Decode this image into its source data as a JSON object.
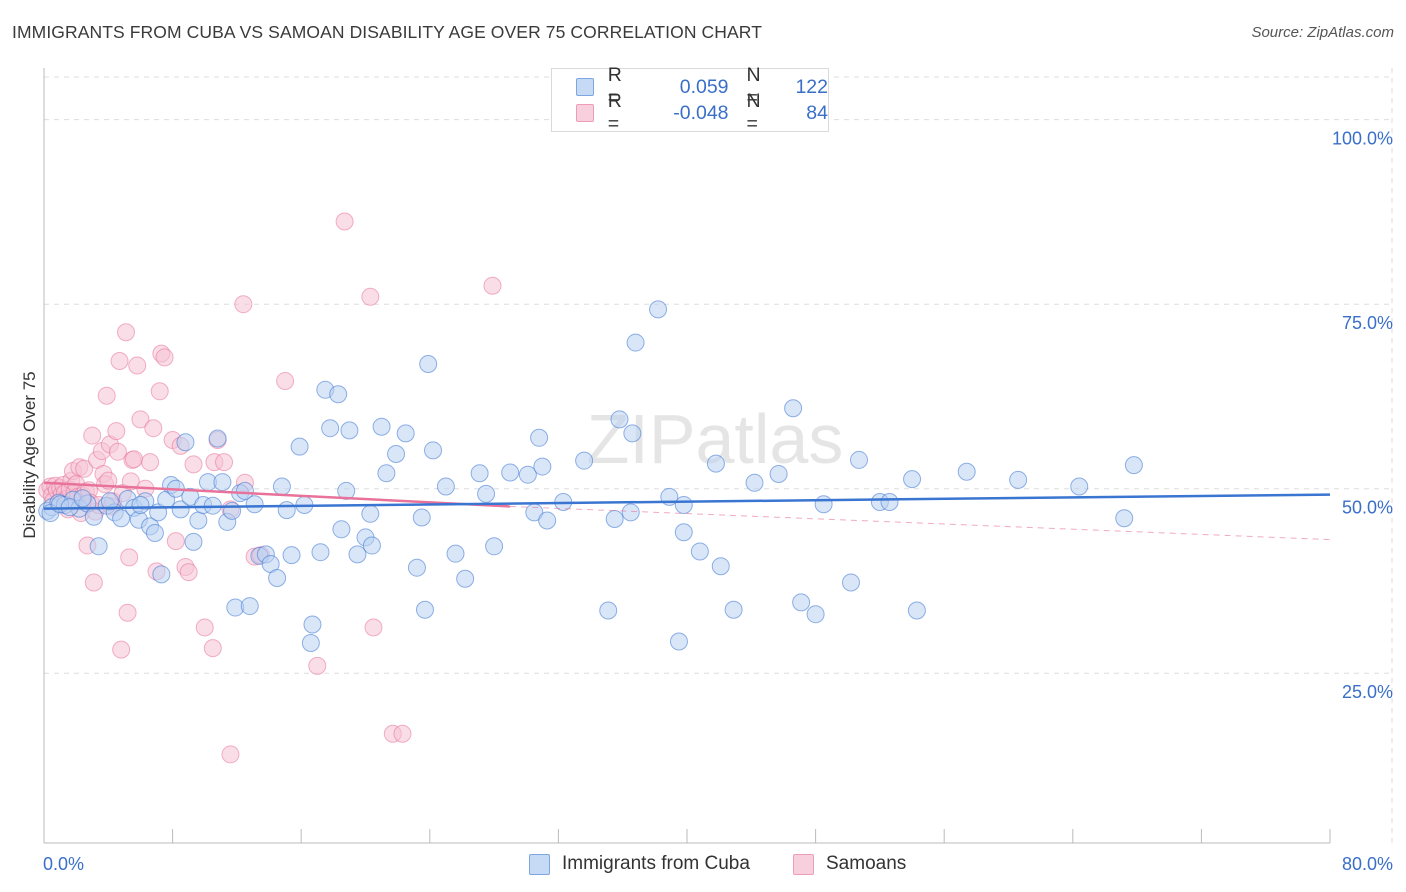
{
  "title": "IMMIGRANTS FROM CUBA VS SAMOAN DISABILITY AGE OVER 75 CORRELATION CHART",
  "source": "Source: ZipAtlas.com",
  "watermark": "ZIPatlas",
  "legend_stats": {
    "r_label": "R =",
    "n_label": "N =",
    "series_1": {
      "r": "0.059",
      "n": "122"
    },
    "series_2": {
      "r": "-0.048",
      "n": "84"
    }
  },
  "legend_bottom": {
    "series_1": "Immigrants from Cuba",
    "series_2": "Samoans"
  },
  "colors": {
    "blue": "#3a75d1",
    "blue_fill": "#b9d1f3",
    "pink": "#e8729a",
    "pink_fill": "#f6c2d3",
    "grid": "#dddddd",
    "tick_text": "#3a6fc9"
  },
  "chart_data": {
    "type": "scatter",
    "ylabel": "Disability Age Over 75",
    "x_tick_labels": [
      "0.0%",
      "80.0%"
    ],
    "y_tick_labels": [
      "25.0%",
      "50.0%",
      "75.0%",
      "100.0%"
    ],
    "xlim": [
      0,
      80
    ],
    "ylim": [
      2,
      107
    ],
    "y_ticks": [
      25,
      50,
      75,
      100
    ],
    "grid": true,
    "series": [
      {
        "name": "Immigrants from Cuba",
        "r": 0.059,
        "n": 122,
        "trend": [
          [
            0,
            47.3
          ],
          [
            80,
            49.2
          ]
        ],
        "points": [
          [
            0.2,
            47.0
          ],
          [
            0.5,
            47.5
          ],
          [
            0.9,
            48.1
          ],
          [
            1.3,
            47.8
          ],
          [
            1.8,
            48.5
          ],
          [
            2.2,
            47.3
          ],
          [
            2.7,
            48.0
          ],
          [
            3.1,
            46.2
          ],
          [
            3.4,
            42.2
          ],
          [
            3.9,
            47.7
          ],
          [
            4.4,
            46.8
          ],
          [
            4.8,
            46.0
          ],
          [
            5.2,
            48.6
          ],
          [
            5.6,
            47.4
          ],
          [
            5.9,
            45.8
          ],
          [
            6.3,
            48.3
          ],
          [
            6.6,
            44.9
          ],
          [
            6.9,
            44.0
          ],
          [
            7.1,
            46.8
          ],
          [
            7.3,
            38.4
          ],
          [
            7.6,
            48.5
          ],
          [
            7.9,
            50.5
          ],
          [
            8.2,
            50.0
          ],
          [
            8.5,
            47.2
          ],
          [
            8.8,
            56.3
          ],
          [
            9.1,
            48.9
          ],
          [
            9.3,
            42.8
          ],
          [
            9.6,
            45.7
          ],
          [
            9.9,
            47.8
          ],
          [
            10.2,
            50.9
          ],
          [
            10.5,
            47.7
          ],
          [
            10.8,
            56.8
          ],
          [
            11.1,
            50.9
          ],
          [
            11.4,
            45.5
          ],
          [
            11.7,
            47.0
          ],
          [
            11.9,
            33.9
          ],
          [
            12.2,
            49.4
          ],
          [
            12.5,
            49.7
          ],
          [
            12.8,
            34.1
          ],
          [
            13.1,
            47.9
          ],
          [
            13.4,
            40.9
          ],
          [
            13.8,
            41.1
          ],
          [
            14.1,
            39.8
          ],
          [
            14.5,
            37.9
          ],
          [
            14.8,
            50.3
          ],
          [
            15.1,
            47.1
          ],
          [
            15.4,
            41.0
          ],
          [
            15.9,
            55.7
          ],
          [
            16.2,
            47.8
          ],
          [
            16.7,
            31.6
          ],
          [
            16.6,
            29.1
          ],
          [
            17.2,
            41.4
          ],
          [
            17.5,
            63.4
          ],
          [
            17.8,
            58.2
          ],
          [
            18.3,
            62.8
          ],
          [
            18.5,
            44.5
          ],
          [
            18.8,
            49.7
          ],
          [
            19.0,
            57.9
          ],
          [
            19.5,
            41.1
          ],
          [
            20.0,
            43.4
          ],
          [
            20.3,
            46.6
          ],
          [
            20.4,
            42.3
          ],
          [
            21.0,
            58.4
          ],
          [
            21.3,
            52.1
          ],
          [
            21.9,
            54.7
          ],
          [
            22.5,
            57.5
          ],
          [
            23.2,
            39.3
          ],
          [
            23.5,
            46.1
          ],
          [
            23.7,
            33.6
          ],
          [
            23.9,
            66.9
          ],
          [
            24.2,
            55.2
          ],
          [
            25.0,
            50.3
          ],
          [
            25.6,
            41.2
          ],
          [
            26.2,
            37.8
          ],
          [
            27.1,
            52.1
          ],
          [
            27.5,
            49.3
          ],
          [
            28.0,
            42.2
          ],
          [
            29.0,
            52.2
          ],
          [
            30.1,
            51.9
          ],
          [
            30.5,
            46.8
          ],
          [
            30.8,
            56.9
          ],
          [
            31.0,
            53.0
          ],
          [
            31.3,
            45.7
          ],
          [
            32.3,
            48.2
          ],
          [
            33.6,
            53.8
          ],
          [
            35.5,
            45.9
          ],
          [
            35.8,
            59.4
          ],
          [
            35.1,
            33.5
          ],
          [
            36.5,
            46.8
          ],
          [
            36.6,
            57.5
          ],
          [
            36.8,
            69.8
          ],
          [
            38.2,
            74.3
          ],
          [
            38.9,
            48.9
          ],
          [
            39.5,
            29.3
          ],
          [
            39.8,
            47.8
          ],
          [
            39.8,
            44.1
          ],
          [
            40.8,
            41.5
          ],
          [
            41.8,
            53.4
          ],
          [
            42.1,
            39.5
          ],
          [
            42.9,
            33.6
          ],
          [
            44.2,
            50.8
          ],
          [
            45.7,
            52.0
          ],
          [
            46.6,
            60.9
          ],
          [
            47.1,
            34.6
          ],
          [
            48.0,
            33.0
          ],
          [
            48.5,
            47.9
          ],
          [
            50.2,
            37.3
          ],
          [
            50.7,
            53.9
          ],
          [
            52.0,
            48.2
          ],
          [
            52.6,
            48.2
          ],
          [
            54.0,
            51.3
          ],
          [
            54.3,
            33.5
          ],
          [
            57.4,
            52.3
          ],
          [
            60.6,
            51.2
          ],
          [
            64.4,
            50.3
          ],
          [
            67.2,
            46.0
          ],
          [
            67.8,
            53.2
          ],
          [
            0.4,
            46.7
          ],
          [
            1.0,
            47.9
          ],
          [
            1.6,
            47.5
          ],
          [
            2.4,
            48.7
          ],
          [
            4.1,
            48.3
          ],
          [
            6.0,
            47.8
          ]
        ]
      },
      {
        "name": "Samoans",
        "r": -0.048,
        "n": 84,
        "trend": [
          [
            0,
            50.8
          ],
          [
            29,
            47.6
          ]
        ],
        "trend_dashed": [
          [
            29,
            47.6
          ],
          [
            80,
            43.1
          ]
        ],
        "points": [
          [
            0.2,
            49.8
          ],
          [
            0.4,
            50.3
          ],
          [
            0.5,
            49.1
          ],
          [
            0.6,
            48.4
          ],
          [
            0.7,
            50.4
          ],
          [
            0.8,
            49.8
          ],
          [
            0.9,
            48.0
          ],
          [
            1.0,
            50.1
          ],
          [
            1.1,
            49.2
          ],
          [
            1.2,
            50.5
          ],
          [
            1.3,
            49.4
          ],
          [
            1.4,
            48.6
          ],
          [
            1.5,
            47.2
          ],
          [
            1.6,
            49.9
          ],
          [
            1.7,
            51.1
          ],
          [
            1.8,
            52.4
          ],
          [
            1.9,
            49.5
          ],
          [
            2.0,
            50.6
          ],
          [
            2.1,
            48.9
          ],
          [
            2.2,
            52.9
          ],
          [
            2.3,
            46.7
          ],
          [
            2.4,
            49.1
          ],
          [
            2.5,
            52.7
          ],
          [
            2.6,
            49.6
          ],
          [
            2.7,
            42.3
          ],
          [
            2.8,
            49.8
          ],
          [
            2.9,
            48.1
          ],
          [
            3.0,
            57.2
          ],
          [
            3.1,
            37.3
          ],
          [
            3.2,
            46.9
          ],
          [
            3.3,
            53.9
          ],
          [
            3.4,
            47.8
          ],
          [
            3.6,
            55.1
          ],
          [
            3.7,
            52.0
          ],
          [
            3.8,
            50.6
          ],
          [
            3.9,
            62.6
          ],
          [
            4.0,
            51.1
          ],
          [
            4.1,
            56.0
          ],
          [
            4.2,
            47.6
          ],
          [
            4.3,
            48.3
          ],
          [
            4.5,
            57.8
          ],
          [
            4.6,
            55.0
          ],
          [
            4.7,
            67.3
          ],
          [
            4.8,
            28.2
          ],
          [
            4.9,
            49.4
          ],
          [
            5.1,
            71.2
          ],
          [
            5.2,
            33.2
          ],
          [
            5.3,
            40.7
          ],
          [
            5.4,
            51.0
          ],
          [
            5.5,
            53.9
          ],
          [
            5.6,
            54.0
          ],
          [
            5.8,
            66.7
          ],
          [
            6.0,
            59.4
          ],
          [
            6.3,
            50.0
          ],
          [
            6.6,
            53.6
          ],
          [
            6.8,
            58.2
          ],
          [
            7.0,
            38.8
          ],
          [
            7.2,
            63.2
          ],
          [
            7.3,
            68.3
          ],
          [
            7.5,
            67.8
          ],
          [
            8.0,
            56.6
          ],
          [
            8.2,
            42.9
          ],
          [
            8.5,
            55.8
          ],
          [
            8.8,
            39.4
          ],
          [
            9.0,
            38.7
          ],
          [
            9.3,
            53.3
          ],
          [
            10.0,
            31.2
          ],
          [
            10.5,
            28.4
          ],
          [
            10.6,
            53.6
          ],
          [
            10.8,
            56.6
          ],
          [
            11.2,
            53.6
          ],
          [
            11.6,
            47.2
          ],
          [
            12.4,
            75.0
          ],
          [
            13.1,
            40.8
          ],
          [
            13.5,
            41.0
          ],
          [
            15.0,
            64.6
          ],
          [
            17.0,
            26.0
          ],
          [
            18.7,
            86.2
          ],
          [
            20.3,
            76.0
          ],
          [
            20.5,
            31.2
          ],
          [
            21.7,
            16.8
          ],
          [
            22.3,
            16.8
          ],
          [
            27.9,
            77.5
          ],
          [
            11.6,
            14.0
          ],
          [
            12.5,
            50.8
          ]
        ]
      }
    ]
  }
}
